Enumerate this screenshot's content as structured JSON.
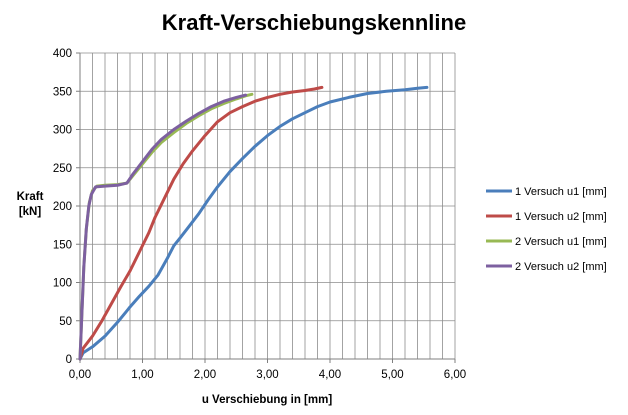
{
  "chart_data": {
    "type": "line",
    "title": "Kraft-Verschiebungskennline",
    "xlabel": "u Verschiebung in [mm]",
    "ylabel_lines": [
      "Kraft",
      "[kN]"
    ],
    "xlim": [
      0,
      6
    ],
    "ylim": [
      0,
      400
    ],
    "x_ticks": [
      0,
      1,
      2,
      3,
      4,
      5,
      6
    ],
    "x_tick_labels": [
      "0,00",
      "1,00",
      "2,00",
      "3,00",
      "4,00",
      "5,00",
      "6,00"
    ],
    "y_ticks": [
      0,
      50,
      100,
      150,
      200,
      250,
      300,
      350,
      400
    ],
    "y_tick_labels": [
      "0",
      "50",
      "100",
      "150",
      "200",
      "250",
      "300",
      "350",
      "400"
    ],
    "grid": true,
    "legend_position": "right",
    "series": [
      {
        "name": "1 Versuch u1 [mm]",
        "color": "#4a7ebb",
        "points": [
          [
            0.0,
            0
          ],
          [
            0.05,
            8
          ],
          [
            0.2,
            16
          ],
          [
            0.4,
            30
          ],
          [
            0.6,
            48
          ],
          [
            0.8,
            68
          ],
          [
            0.95,
            82
          ],
          [
            1.1,
            95
          ],
          [
            1.25,
            110
          ],
          [
            1.4,
            132
          ],
          [
            1.5,
            148
          ],
          [
            1.6,
            158
          ],
          [
            1.75,
            174
          ],
          [
            1.9,
            190
          ],
          [
            2.05,
            208
          ],
          [
            2.2,
            225
          ],
          [
            2.4,
            245
          ],
          [
            2.6,
            262
          ],
          [
            2.8,
            278
          ],
          [
            3.0,
            292
          ],
          [
            3.2,
            304
          ],
          [
            3.4,
            314
          ],
          [
            3.6,
            322
          ],
          [
            3.8,
            330
          ],
          [
            4.0,
            336
          ],
          [
            4.3,
            342
          ],
          [
            4.6,
            347
          ],
          [
            4.9,
            350
          ],
          [
            5.2,
            352
          ],
          [
            5.4,
            354
          ],
          [
            5.55,
            355
          ]
        ]
      },
      {
        "name": "1 Versuch u2 [mm]",
        "color": "#be4b48",
        "points": [
          [
            0.0,
            0
          ],
          [
            0.05,
            14
          ],
          [
            0.2,
            30
          ],
          [
            0.35,
            50
          ],
          [
            0.5,
            72
          ],
          [
            0.65,
            94
          ],
          [
            0.8,
            115
          ],
          [
            0.95,
            140
          ],
          [
            1.1,
            165
          ],
          [
            1.2,
            185
          ],
          [
            1.35,
            210
          ],
          [
            1.5,
            235
          ],
          [
            1.65,
            255
          ],
          [
            1.8,
            272
          ],
          [
            2.0,
            292
          ],
          [
            2.2,
            310
          ],
          [
            2.4,
            322
          ],
          [
            2.6,
            330
          ],
          [
            2.8,
            337
          ],
          [
            3.0,
            342
          ],
          [
            3.2,
            346
          ],
          [
            3.4,
            349
          ],
          [
            3.6,
            351
          ],
          [
            3.75,
            353
          ],
          [
            3.87,
            355
          ]
        ]
      },
      {
        "name": "2 Versuch u1 [mm]",
        "color": "#98b954",
        "points": [
          [
            0.0,
            0
          ],
          [
            0.03,
            60
          ],
          [
            0.06,
            120
          ],
          [
            0.1,
            170
          ],
          [
            0.15,
            205
          ],
          [
            0.2,
            220
          ],
          [
            0.27,
            226
          ],
          [
            0.4,
            227
          ],
          [
            0.6,
            228
          ],
          [
            0.75,
            230
          ],
          [
            0.85,
            240
          ],
          [
            1.0,
            255
          ],
          [
            1.15,
            270
          ],
          [
            1.3,
            283
          ],
          [
            1.5,
            296
          ],
          [
            1.7,
            308
          ],
          [
            1.9,
            318
          ],
          [
            2.1,
            327
          ],
          [
            2.3,
            334
          ],
          [
            2.5,
            340
          ],
          [
            2.65,
            344
          ],
          [
            2.75,
            346
          ]
        ]
      },
      {
        "name": "2 Versuch u2 [mm]",
        "color": "#7d60a0",
        "points": [
          [
            0.0,
            0
          ],
          [
            0.03,
            60
          ],
          [
            0.06,
            120
          ],
          [
            0.1,
            170
          ],
          [
            0.14,
            200
          ],
          [
            0.18,
            215
          ],
          [
            0.25,
            225
          ],
          [
            0.4,
            226
          ],
          [
            0.6,
            227
          ],
          [
            0.75,
            230
          ],
          [
            0.85,
            242
          ],
          [
            1.0,
            258
          ],
          [
            1.15,
            274
          ],
          [
            1.3,
            287
          ],
          [
            1.5,
            300
          ],
          [
            1.7,
            311
          ],
          [
            1.9,
            321
          ],
          [
            2.1,
            330
          ],
          [
            2.3,
            337
          ],
          [
            2.5,
            342
          ],
          [
            2.65,
            345
          ]
        ]
      }
    ]
  }
}
